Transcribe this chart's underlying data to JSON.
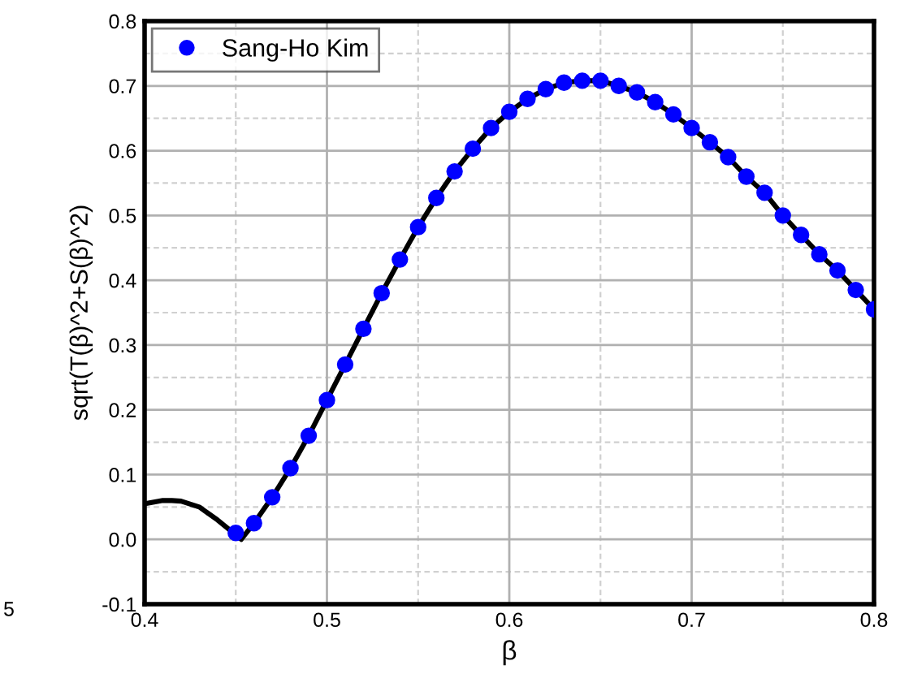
{
  "chart_data": {
    "type": "line",
    "xlabel": "β",
    "ylabel": "sqrt(T(β)^2+S(β)^2)",
    "xlim": [
      0.4,
      0.8
    ],
    "ylim": [
      -0.1,
      0.8
    ],
    "xticks": [
      0.4,
      0.5,
      0.6,
      0.7,
      0.8
    ],
    "yticks": [
      -0.1,
      {
        "value": 0,
        "label": "0.0"
      },
      0.1,
      0.2,
      0.3,
      0.4,
      0.5,
      0.6,
      0.7,
      0.8
    ],
    "grid": true,
    "legend": "top left",
    "annotations": [
      "5"
    ],
    "series": [
      {
        "color": "#000000",
        "marker": "none",
        "x": [
          0.4,
          0.41,
          0.415,
          0.42,
          0.43,
          0.44,
          0.453,
          0.46,
          0.47,
          0.48,
          0.49,
          0.5,
          0.51,
          0.52,
          0.53,
          0.54,
          0.55,
          0.56,
          0.57,
          0.58,
          0.59,
          0.6,
          0.61,
          0.62,
          0.63,
          0.64,
          0.65,
          0.66,
          0.67,
          0.68,
          0.69,
          0.7,
          0.71,
          0.72,
          0.73,
          0.74,
          0.75,
          0.76,
          0.77,
          0.78,
          0.79,
          0.8
        ],
        "values": [
          0.055,
          0.06,
          0.06,
          0.059,
          0.05,
          0.03,
          0.0,
          0.025,
          0.065,
          0.11,
          0.16,
          0.215,
          0.27,
          0.325,
          0.38,
          0.432,
          0.482,
          0.527,
          0.568,
          0.603,
          0.635,
          0.66,
          0.68,
          0.695,
          0.705,
          0.708,
          0.708,
          0.7,
          0.69,
          0.675,
          0.656,
          0.635,
          0.613,
          0.59,
          0.56,
          0.535,
          0.5,
          0.47,
          0.44,
          0.415,
          0.385,
          0.355
        ]
      },
      {
        "type": "scatter",
        "name": "Sang-Ho Kim",
        "color": "#0000ff",
        "marker": "circle",
        "x": [
          0.45,
          0.46,
          0.47,
          0.48,
          0.49,
          0.5,
          0.51,
          0.52,
          0.53,
          0.54,
          0.55,
          0.56,
          0.57,
          0.58,
          0.59,
          0.6,
          0.61,
          0.62,
          0.63,
          0.64,
          0.65,
          0.66,
          0.67,
          0.68,
          0.69,
          0.7,
          0.71,
          0.72,
          0.73,
          0.74,
          0.75,
          0.76,
          0.77,
          0.78,
          0.79,
          0.8
        ],
        "values": [
          0.01,
          0.025,
          0.065,
          0.11,
          0.16,
          0.215,
          0.27,
          0.325,
          0.38,
          0.432,
          0.482,
          0.527,
          0.568,
          0.603,
          0.635,
          0.66,
          0.68,
          0.695,
          0.705,
          0.708,
          0.708,
          0.7,
          0.69,
          0.675,
          0.656,
          0.635,
          0.613,
          0.59,
          0.56,
          0.535,
          0.5,
          0.47,
          0.44,
          0.415,
          0.385,
          0.355
        ]
      }
    ]
  }
}
